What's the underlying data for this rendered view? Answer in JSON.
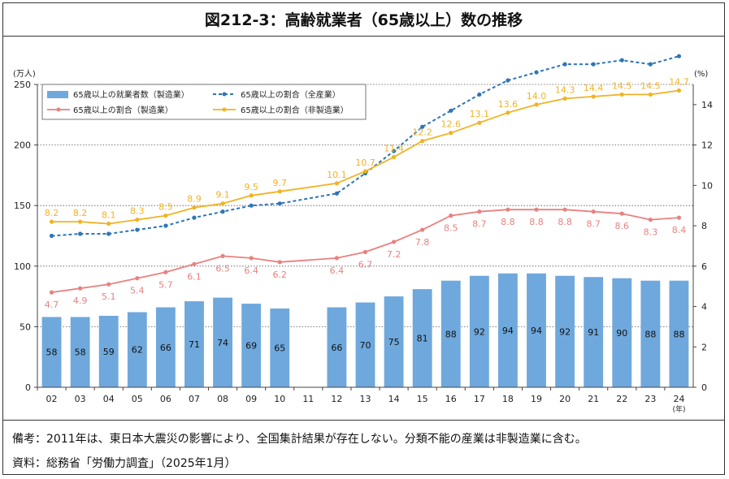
{
  "title": "図212-3：高齢就業者（65歳以上）数の推移",
  "notes": {
    "remark": "備考：2011年は、東日本大震災の影響により、全国集計結果が存在しない。分類不能の産業は非製造業に含む。",
    "source": "資料：総務省「労働力調査」（2025年1月）"
  },
  "chart_data": {
    "type": "bar+line",
    "categories": [
      "02",
      "03",
      "04",
      "05",
      "06",
      "07",
      "08",
      "09",
      "10",
      "11",
      "12",
      "13",
      "14",
      "15",
      "16",
      "17",
      "18",
      "19",
      "20",
      "21",
      "22",
      "23",
      "24"
    ],
    "x_unit": "(年)",
    "y_left": {
      "unit": "(万人)",
      "range": [
        0,
        250
      ],
      "ticks": [
        0,
        50,
        100,
        150,
        200,
        250
      ]
    },
    "y_right": {
      "unit": "(%)",
      "range": [
        0,
        15
      ],
      "ticks": [
        0,
        2,
        4,
        6,
        8,
        10,
        12,
        14
      ]
    },
    "grid": "dotted horizontal",
    "legend_position": "top-left",
    "series": [
      {
        "name": "65歳以上の就業者数（製造業）",
        "kind": "bar",
        "axis": "left",
        "color": "#6fa8dc",
        "values": [
          58,
          58,
          59,
          62,
          66,
          71,
          74,
          69,
          65,
          null,
          66,
          70,
          75,
          81,
          88,
          92,
          94,
          94,
          92,
          91,
          90,
          88,
          88
        ]
      },
      {
        "name": "65歳以上の割合（全産業）",
        "kind": "line-dashed",
        "axis": "right",
        "color": "#2e75b6",
        "values": [
          7.5,
          7.6,
          7.6,
          7.8,
          8.0,
          8.4,
          8.7,
          9.0,
          9.1,
          null,
          9.6,
          10.6,
          11.7,
          12.9,
          13.7,
          14.5,
          15.2,
          15.6,
          16.0,
          16.0,
          16.2,
          16.0,
          16.4
        ]
      },
      {
        "name": "65歳以上の割合（製造業）",
        "kind": "line",
        "axis": "right",
        "color": "#e8817f",
        "values": [
          4.7,
          4.9,
          5.1,
          5.4,
          5.7,
          6.1,
          6.5,
          6.4,
          6.2,
          null,
          6.4,
          6.7,
          7.2,
          7.8,
          8.5,
          8.7,
          8.8,
          8.8,
          8.8,
          8.7,
          8.6,
          8.3,
          8.4
        ],
        "labels": [
          "4.7",
          "4.9",
          "5.1",
          "5.4",
          "5.7",
          "6.1",
          "6.5",
          "6.4",
          "6.2",
          "",
          "6.4",
          "6.7",
          "7.2",
          "7.8",
          "8.5",
          "8.7",
          "8.8",
          "8.8",
          "8.8",
          "8.7",
          "8.6",
          "8.3",
          "8.4"
        ]
      },
      {
        "name": "65歳以上の割合（非製造業）",
        "kind": "line",
        "axis": "right",
        "color": "#f0b323",
        "values": [
          8.2,
          8.2,
          8.1,
          8.3,
          8.5,
          8.9,
          9.1,
          9.5,
          9.7,
          null,
          10.1,
          10.7,
          11.4,
          12.2,
          12.6,
          13.1,
          13.6,
          14.0,
          14.3,
          14.4,
          14.5,
          14.5,
          14.7
        ],
        "labels": [
          "8.2",
          "8.2",
          "8.1",
          "8.3",
          "8.5",
          "8.9",
          "9.1",
          "9.5",
          "9.7",
          "",
          "10.1",
          "10.7",
          "11.4",
          "12.2",
          "12.6",
          "13.1",
          "13.6",
          "14.0",
          "14.3",
          "14.4",
          "14.5",
          "14.5",
          "14.7"
        ]
      }
    ]
  }
}
